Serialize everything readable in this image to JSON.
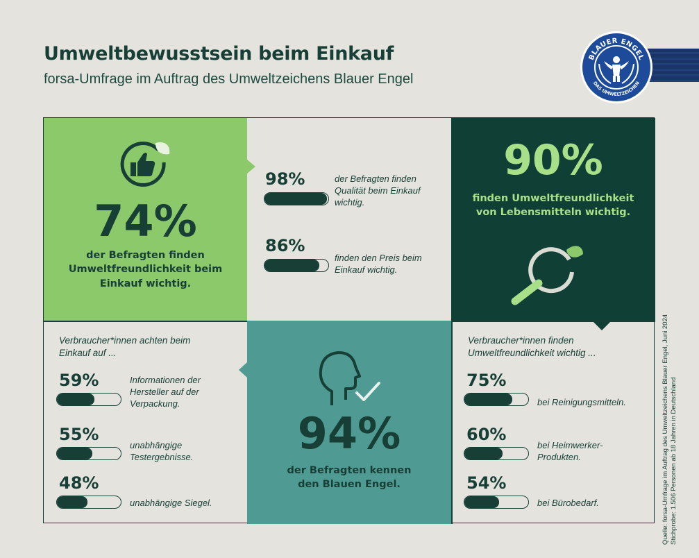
{
  "header": {
    "title": "Umweltbewusstsein beim Einkauf",
    "subtitle": "forsa-Umfrage im Auftrag des Umweltzeichens Blauer Engel"
  },
  "logo": {
    "top_text": "BLAUER ENGEL",
    "bottom_text": "DAS UMWELTZEICHEN"
  },
  "panels": {
    "green": {
      "icon": "thumbs-up-leaf-icon",
      "percent": "74%",
      "text": [
        "der Befragten finden",
        "Umweltfreundlichkeit beim",
        "Einkauf wichtig."
      ]
    },
    "top_middle": {
      "items": [
        {
          "percent": "98%",
          "value": 98,
          "text": [
            "der Befragten finden",
            "Qualität beim Einkauf",
            "wichtig."
          ]
        },
        {
          "percent": "86%",
          "value": 86,
          "text": [
            "finden den Preis beim",
            "Einkauf wichtig."
          ]
        }
      ]
    },
    "dark": {
      "percent": "90%",
      "text": [
        "finden Umweltfreundlichkeit",
        "von Lebensmitteln wichtig."
      ],
      "icon": "magnifier-leaf-icon"
    },
    "bottom_left": {
      "intro": [
        "Verbraucher*innen achten beim",
        "Einkauf auf ..."
      ],
      "items": [
        {
          "percent": "59%",
          "value": 59,
          "text": [
            "Informationen der",
            "Hersteller auf der",
            "Verpackung."
          ]
        },
        {
          "percent": "55%",
          "value": 55,
          "text": [
            "unabhängige",
            "Testergebnisse."
          ]
        },
        {
          "percent": "48%",
          "value": 48,
          "text": [
            "unabhängige Siegel."
          ]
        }
      ]
    },
    "teal": {
      "icon": "head-check-icon",
      "percent": "94%",
      "text": [
        "der Befragten kennen",
        "den Blauen Engel."
      ]
    },
    "bottom_right": {
      "intro": [
        "Verbraucher*innen finden",
        "Umweltfreundlichkeit wichtig ..."
      ],
      "items": [
        {
          "percent": "75%",
          "value": 75,
          "text": [
            "bei Reinigungsmitteln."
          ]
        },
        {
          "percent": "60%",
          "value": 60,
          "text": [
            "bei Heimwerker-",
            "Produkten."
          ]
        },
        {
          "percent": "54%",
          "value": 54,
          "text": [
            "bei Bürobedarf."
          ]
        }
      ]
    }
  },
  "source": {
    "line1": "Quelle: forsa-Umfrage im Auftrag des Umweltzeichens Blauer Engel, Juni 2024",
    "line2": "Stichprobe: 1.506 Personen ab 18 Jahren in Deutschland"
  },
  "colors": {
    "background": "#e4e3de",
    "green": "#8cc96b",
    "dark": "#0f3f35",
    "teal": "#4f9a93",
    "text": "#173f36",
    "light_green": "#a8e08a",
    "logo_blue": "#1d4b9a"
  }
}
